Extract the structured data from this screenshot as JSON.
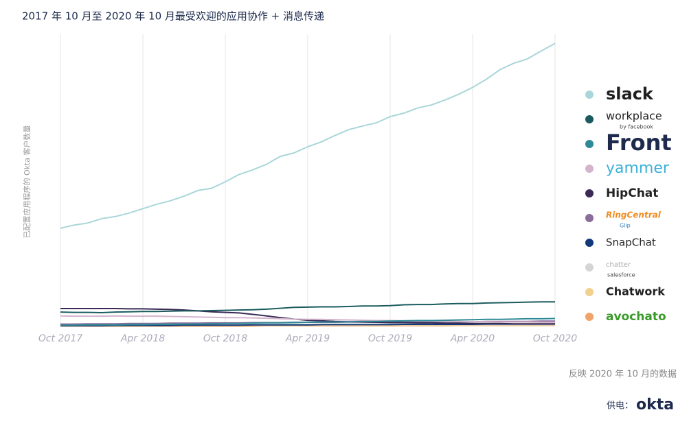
{
  "chart_data": {
    "type": "line",
    "title": "2017 年 10 月至 2020 年 10 月最受欢迎的应用协作 + 消息传递",
    "y_label": "已配置应用程序的 Okta 客户数量",
    "categories": [
      "Oct 2017",
      null,
      null,
      null,
      null,
      null,
      "Apr 2018",
      null,
      null,
      null,
      null,
      null,
      "Oct 2018",
      null,
      null,
      null,
      null,
      null,
      "Apr 2019",
      null,
      null,
      null,
      null,
      null,
      "Oct 2019",
      null,
      null,
      null,
      null,
      null,
      "Apr 2020",
      null,
      null,
      null,
      null,
      null,
      "Oct 2020"
    ],
    "ylim": [
      0,
      100
    ],
    "grid": true,
    "legend": "right",
    "series": [
      {
        "name": "slack",
        "color": "#a9d6d9",
        "values": [
          33.6,
          34.7,
          35.4,
          36.9,
          37.6,
          38.8,
          40.3,
          41.8,
          43.0,
          44.6,
          46.5,
          47.3,
          49.5,
          52.0,
          53.6,
          55.5,
          58.2,
          59.4,
          61.5,
          63.2,
          65.4,
          67.4,
          68.6,
          69.7,
          71.8,
          73.0,
          74.8,
          75.8,
          77.5,
          79.5,
          81.8,
          84.6,
          87.9,
          90.1,
          91.6,
          94.3,
          96.9
        ]
      },
      {
        "name": "workplace",
        "sublabel": "by facebook",
        "color": "#1b5b5f",
        "values": [
          4.9,
          4.8,
          4.8,
          4.7,
          4.9,
          5.0,
          5.1,
          5.1,
          5.2,
          5.3,
          5.3,
          5.4,
          5.5,
          5.6,
          5.7,
          5.9,
          6.2,
          6.5,
          6.6,
          6.7,
          6.7,
          6.8,
          7.0,
          7.0,
          7.1,
          7.4,
          7.5,
          7.5,
          7.7,
          7.8,
          7.8,
          8.0,
          8.1,
          8.2,
          8.3,
          8.4,
          8.4
        ]
      },
      {
        "name": "Front",
        "color": "#2e8a96",
        "values": [
          0.4,
          0.4,
          0.5,
          0.5,
          0.5,
          0.6,
          0.6,
          0.7,
          0.7,
          0.8,
          0.8,
          0.9,
          1.0,
          1.0,
          1.1,
          1.2,
          1.2,
          1.3,
          1.4,
          1.5,
          1.5,
          1.6,
          1.7,
          1.7,
          1.8,
          1.9,
          2.0,
          2.0,
          2.1,
          2.2,
          2.3,
          2.4,
          2.4,
          2.5,
          2.6,
          2.6,
          2.7
        ]
      },
      {
        "name": "yammer",
        "color": "#d4b3cc",
        "values": [
          3.6,
          3.5,
          3.5,
          3.5,
          3.6,
          3.5,
          3.5,
          3.5,
          3.4,
          3.3,
          3.2,
          3.1,
          3.0,
          3.0,
          2.9,
          2.8,
          2.6,
          2.5,
          2.4,
          2.4,
          2.3,
          2.2,
          2.1,
          2.0,
          2.0,
          1.9,
          1.9,
          1.8,
          1.7,
          1.7,
          1.6,
          1.6,
          1.5,
          1.5,
          1.5,
          1.4,
          1.4
        ]
      },
      {
        "name": "HipChat",
        "color": "#3a2a55",
        "values": [
          6.1,
          6.1,
          6.1,
          6.1,
          6.1,
          6.0,
          6.0,
          5.9,
          5.8,
          5.6,
          5.3,
          5.0,
          4.8,
          4.6,
          4.1,
          3.6,
          3.0,
          2.5,
          2.1,
          1.9,
          1.7,
          1.6,
          1.5,
          1.4,
          1.3,
          1.3,
          1.2,
          1.2,
          1.1,
          1.1,
          1.0,
          1.0,
          1.0,
          0.9,
          0.9,
          0.9,
          0.9
        ]
      },
      {
        "name": "RingCentral",
        "sublabel": "Glip",
        "color": "#8a6d9a",
        "values": [
          0.8,
          0.8,
          0.9,
          0.9,
          0.9,
          1.0,
          1.0,
          1.0,
          1.1,
          1.1,
          1.1,
          1.2,
          1.2,
          1.2,
          1.3,
          1.3,
          1.3,
          1.4,
          1.4,
          1.4,
          1.4,
          1.5,
          1.5,
          1.5,
          1.5,
          1.5,
          1.6,
          1.6,
          1.6,
          1.6,
          1.6,
          1.7,
          1.7,
          1.7,
          1.7,
          1.8,
          1.8
        ]
      },
      {
        "name": "SnapChat",
        "color": "#123a7a",
        "values": [
          0.2,
          0.2,
          0.2,
          0.2,
          0.3,
          0.3,
          0.3,
          0.3,
          0.3,
          0.4,
          0.4,
          0.4,
          0.4,
          0.4,
          0.5,
          0.5,
          0.5,
          0.5,
          0.5,
          0.6,
          0.6,
          0.6,
          0.6,
          0.6,
          0.6,
          0.7,
          0.7,
          0.7,
          0.7,
          0.7,
          0.7,
          0.8,
          0.8,
          0.8,
          0.8,
          0.8,
          0.8
        ]
      },
      {
        "name": "chatter",
        "sublabel": "salesforce",
        "color": "#d5d5d5",
        "values": [
          0.5,
          0.5,
          0.5,
          0.5,
          0.5,
          0.5,
          0.5,
          0.5,
          0.5,
          0.5,
          0.6,
          0.6,
          0.6,
          0.6,
          0.6,
          0.6,
          0.6,
          0.6,
          0.6,
          0.6,
          0.6,
          0.6,
          0.6,
          0.6,
          0.6,
          0.6,
          0.6,
          0.6,
          0.6,
          0.6,
          0.6,
          0.6,
          0.6,
          0.6,
          0.6,
          0.6,
          0.6
        ]
      },
      {
        "name": "Chatwork",
        "color": "#f2d08e",
        "values": [
          0.3,
          0.3,
          0.3,
          0.3,
          0.3,
          0.3,
          0.3,
          0.3,
          0.3,
          0.3,
          0.3,
          0.3,
          0.3,
          0.3,
          0.3,
          0.3,
          0.3,
          0.3,
          0.4,
          0.4,
          0.4,
          0.4,
          0.4,
          0.4,
          0.4,
          0.4,
          0.4,
          0.4,
          0.4,
          0.4,
          0.4,
          0.4,
          0.4,
          0.4,
          0.4,
          0.4,
          0.4
        ]
      },
      {
        "name": "avochato",
        "color": "#f0a36a",
        "values": [
          0.1,
          0.1,
          0.1,
          0.1,
          0.1,
          0.1,
          0.1,
          0.1,
          0.1,
          0.1,
          0.1,
          0.1,
          0.1,
          0.1,
          0.1,
          0.2,
          0.2,
          0.2,
          0.2,
          0.2,
          0.2,
          0.2,
          0.2,
          0.2,
          0.2,
          0.2,
          0.2,
          0.2,
          0.2,
          0.3,
          0.3,
          0.3,
          0.3,
          0.3,
          0.3,
          0.3,
          0.3
        ]
      }
    ],
    "footer": {
      "note": "反映 2020 年 10 月的数据",
      "powered_by": "供电：",
      "brand": "okta"
    }
  }
}
